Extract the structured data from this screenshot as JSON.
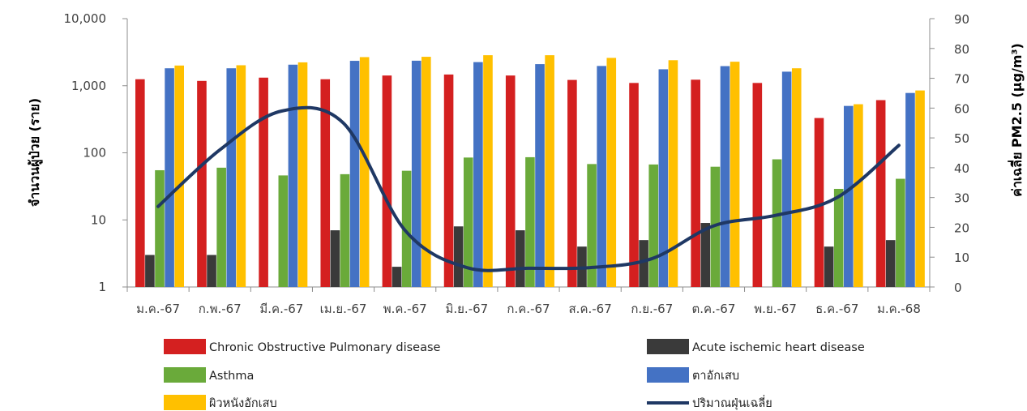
{
  "chart_data": {
    "type": "bar",
    "categories": [
      "ม.ค.-67",
      "ก.พ.-67",
      "มี.ค.-67",
      "เม.ย.-67",
      "พ.ค.-67",
      "มิ.ย.-67",
      "ก.ค.-67",
      "ส.ค.-67",
      "ก.ย.-67",
      "ต.ค.-67",
      "พ.ย.-67",
      "ธ.ค.-67",
      "ม.ค.-68"
    ],
    "y_left": {
      "label": "จำนวนผู้ป่วย (ราย)",
      "scale": "log",
      "ylim": [
        1,
        10000
      ],
      "ticks": [
        "1",
        "10",
        "100",
        "1,000",
        "10,000"
      ]
    },
    "y_right": {
      "label": "ค่าเฉลี่ย PM2.5 (µg/m³)",
      "ylim": [
        0,
        90
      ],
      "ticks": [
        "0",
        "10",
        "20",
        "30",
        "40",
        "50",
        "60",
        "70",
        "80",
        "90"
      ]
    },
    "series": [
      {
        "name": "Chronic Obstructive Pulmonary disease",
        "kind": "bar",
        "axis": "left",
        "color": "#d42020",
        "values": [
          1250,
          1180,
          1320,
          1250,
          1420,
          1470,
          1420,
          1220,
          1100,
          1230,
          1100,
          330,
          610
        ]
      },
      {
        "name": "Acute ischemic heart disease",
        "kind": "bar",
        "axis": "left",
        "color": "#3a3a3a",
        "values": [
          3,
          3,
          null,
          7,
          2,
          8,
          7,
          4,
          5,
          9,
          null,
          4,
          5
        ]
      },
      {
        "name": "Asthma",
        "kind": "bar",
        "axis": "left",
        "color": "#6aaa3a",
        "values": [
          55,
          60,
          46,
          48,
          54,
          85,
          86,
          68,
          67,
          62,
          80,
          29,
          41
        ]
      },
      {
        "name": "ตาอักเสบ",
        "kind": "bar",
        "axis": "left",
        "color": "#4472c4",
        "values": [
          1820,
          1820,
          2060,
          2350,
          2360,
          2250,
          2100,
          1970,
          1760,
          1960,
          1620,
          500,
          780
        ]
      },
      {
        "name": "ผิวหนังอักเสบ",
        "kind": "bar",
        "axis": "left",
        "color": "#ffc000",
        "values": [
          2000,
          2020,
          2230,
          2670,
          2700,
          2850,
          2850,
          2600,
          2400,
          2280,
          1820,
          530,
          850
        ]
      },
      {
        "name": "ปริมาณฝุ่นเฉลี่ย",
        "kind": "line",
        "axis": "right",
        "color": "#1f3864",
        "values": [
          27,
          46,
          59,
          55,
          19,
          6.5,
          6.3,
          6.5,
          9.5,
          20.5,
          24,
          30,
          47.5
        ]
      }
    ],
    "legend_position": "bottom",
    "grid": false
  }
}
